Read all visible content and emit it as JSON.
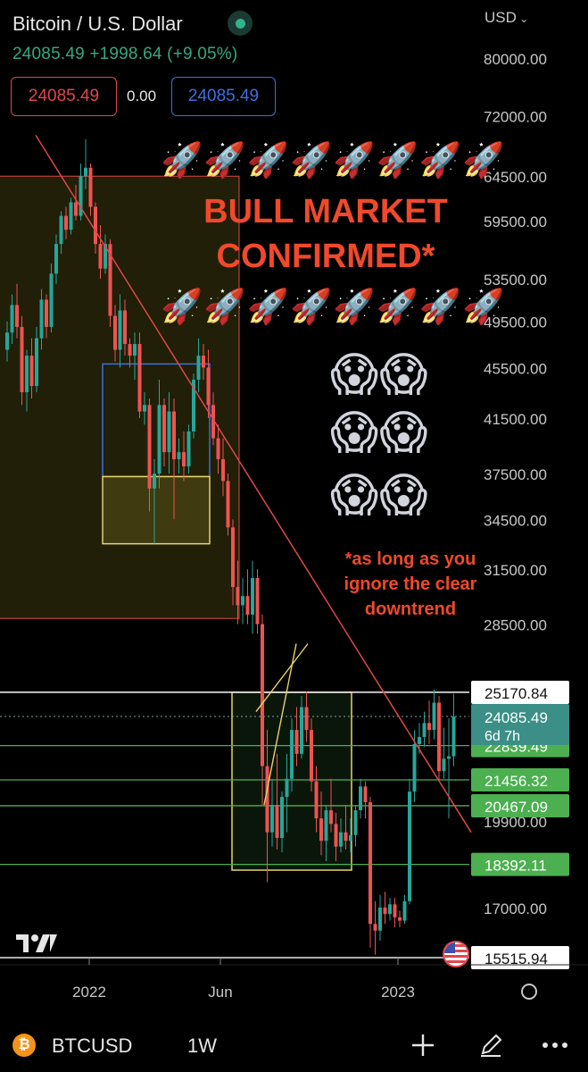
{
  "header": {
    "title": "Bitcoin / U.S. Dollar",
    "price_line": "24085.49  +1998.64 (+9.05%)",
    "sell_price": "24085.49",
    "spread": "0.00",
    "buy_price": "24085.49",
    "currency": "USD"
  },
  "annotations": {
    "rockets": "🚀🚀🚀🚀🚀🚀🚀🚀",
    "headline_1": "BULL MARKET",
    "headline_2": "CONFIRMED*",
    "scream": "😱😱",
    "footnote_1": "*as long as you",
    "footnote_2": "ignore the clear",
    "footnote_3": "downtrend"
  },
  "toolbar": {
    "symbol": "BTCUSD",
    "interval": "1W",
    "add_icon": "plus-icon",
    "draw_icon": "pencil-icon",
    "more_icon": "more-icon"
  },
  "colors": {
    "up": "#26a69a",
    "down": "#ef5350",
    "accent_red": "#f0492b",
    "level_green": "#4caf50"
  },
  "chart_data": {
    "type": "candlestick",
    "title": "",
    "xlabel": "",
    "ylabel": "",
    "x_ticks": [
      "2022",
      "Jun",
      "2023"
    ],
    "y_ticks": [
      80000,
      72000,
      64500,
      59500,
      53500,
      49500,
      45500,
      41500,
      37500,
      34500,
      31500,
      28500,
      19900,
      17000
    ],
    "y_tick_labels": [
      "80000.00",
      "72000.00",
      "64500.00",
      "59500.00",
      "53500.00",
      "49500.00",
      "45500.00",
      "41500.00",
      "37500.00",
      "34500.00",
      "31500.00",
      "28500.00",
      "19900.00",
      "17000.00"
    ],
    "y_scale": "log",
    "grid": false,
    "current_price": {
      "value": 24085.49,
      "label": "24085.49",
      "countdown": "6d 7h"
    },
    "price_levels": [
      {
        "value": 25170.84,
        "label": "25170.84",
        "style": "white"
      },
      {
        "value": 22839.49,
        "label": "22839.49",
        "style": "green"
      },
      {
        "value": 21456.32,
        "label": "21456.32",
        "style": "green"
      },
      {
        "value": 20467.09,
        "label": "20467.09",
        "style": "green"
      },
      {
        "value": 18392.11,
        "label": "18392.11",
        "style": "green"
      },
      {
        "value": 15515.94,
        "label": "15515.94",
        "style": "white"
      }
    ],
    "candles": [
      [
        47000,
        49500,
        46000,
        48500
      ],
      [
        48500,
        52000,
        47500,
        51000
      ],
      [
        51000,
        53000,
        48000,
        49000
      ],
      [
        49000,
        50000,
        42500,
        43500
      ],
      [
        43500,
        47000,
        42000,
        46500
      ],
      [
        46500,
        48000,
        43000,
        44000
      ],
      [
        44000,
        49000,
        43500,
        48000
      ],
      [
        48000,
        52500,
        47000,
        51500
      ],
      [
        51500,
        52000,
        48000,
        49000
      ],
      [
        49000,
        55000,
        48500,
        54000
      ],
      [
        54000,
        58000,
        53000,
        57000
      ],
      [
        57000,
        60500,
        56000,
        60000
      ],
      [
        60000,
        61000,
        57500,
        58500
      ],
      [
        58500,
        62000,
        58000,
        61500
      ],
      [
        61500,
        63500,
        59500,
        60000
      ],
      [
        60000,
        66000,
        59500,
        64500
      ],
      [
        64500,
        69000,
        63000,
        65500
      ],
      [
        65500,
        66000,
        60000,
        61000
      ],
      [
        61000,
        61500,
        56000,
        57000
      ],
      [
        57000,
        59000,
        53500,
        54500
      ],
      [
        54500,
        58000,
        54000,
        57000
      ],
      [
        57000,
        57500,
        49000,
        50000
      ],
      [
        50000,
        51000,
        46000,
        47000
      ],
      [
        47000,
        52000,
        45500,
        50500
      ],
      [
        50500,
        51500,
        46500,
        47500
      ],
      [
        47500,
        48000,
        45500,
        46500
      ],
      [
        46500,
        48500,
        44500,
        47500
      ],
      [
        47500,
        48500,
        41500,
        42000
      ],
      [
        42000,
        43500,
        41000,
        42500
      ],
      [
        42500,
        43000,
        35000,
        36500
      ],
      [
        36500,
        38500,
        33000,
        37500
      ],
      [
        37500,
        44500,
        36500,
        42500
      ],
      [
        42500,
        43000,
        38000,
        39000
      ],
      [
        39000,
        43500,
        37500,
        42000
      ],
      [
        42000,
        43000,
        34500,
        38500
      ],
      [
        38500,
        40000,
        37500,
        39000
      ],
      [
        39000,
        40500,
        37000,
        38000
      ],
      [
        38000,
        41000,
        37500,
        40500
      ],
      [
        40500,
        45000,
        40000,
        44500
      ],
      [
        44500,
        48000,
        43500,
        46500
      ],
      [
        46500,
        47500,
        44500,
        45500
      ],
      [
        45500,
        47000,
        41500,
        42500
      ],
      [
        42500,
        43500,
        39500,
        40000
      ],
      [
        40000,
        41000,
        37500,
        38500
      ],
      [
        38500,
        40000,
        36000,
        37000
      ],
      [
        37000,
        37500,
        33500,
        34000
      ],
      [
        34000,
        34500,
        29500,
        30500
      ],
      [
        30500,
        32000,
        28500,
        29500
      ],
      [
        29500,
        31000,
        28500,
        30000
      ],
      [
        30000,
        31500,
        28500,
        29000
      ],
      [
        29000,
        32000,
        28000,
        31000
      ],
      [
        31000,
        31500,
        28000,
        28500
      ],
      [
        28500,
        29000,
        20500,
        22000
      ],
      [
        22000,
        23500,
        17800,
        19500
      ],
      [
        19500,
        21500,
        19000,
        20500
      ],
      [
        20500,
        22500,
        18900,
        19300
      ],
      [
        19300,
        21000,
        18800,
        20800
      ],
      [
        20800,
        22500,
        19500,
        21500
      ],
      [
        21500,
        24000,
        21000,
        23500
      ],
      [
        23500,
        24500,
        22000,
        22500
      ],
      [
        22500,
        25000,
        22300,
        24500
      ],
      [
        24500,
        25200,
        23000,
        23500
      ],
      [
        23500,
        24000,
        21000,
        21400
      ],
      [
        21400,
        22000,
        19500,
        20000
      ],
      [
        20000,
        21000,
        18700,
        19200
      ],
      [
        19200,
        20500,
        18500,
        20300
      ],
      [
        20300,
        21500,
        19500,
        19800
      ],
      [
        19800,
        20200,
        18500,
        19000
      ],
      [
        19000,
        20000,
        18800,
        19500
      ],
      [
        19500,
        20500,
        18900,
        19200
      ],
      [
        19200,
        20000,
        18800,
        19400
      ],
      [
        19400,
        20500,
        19000,
        20300
      ],
      [
        20300,
        21500,
        20000,
        21200
      ],
      [
        21200,
        21400,
        20000,
        20600
      ],
      [
        20600,
        20800,
        15800,
        16500
      ],
      [
        16500,
        17200,
        15600,
        16300
      ],
      [
        16300,
        17400,
        16000,
        17000
      ],
      [
        17000,
        17500,
        16500,
        16800
      ],
      [
        16800,
        17300,
        16600,
        17100
      ],
      [
        17100,
        17300,
        16400,
        16700
      ],
      [
        16700,
        16900,
        16400,
        16600
      ],
      [
        16600,
        17400,
        16500,
        17200
      ],
      [
        17200,
        21500,
        17100,
        21000
      ],
      [
        21000,
        23500,
        20600,
        22900
      ],
      [
        22900,
        23800,
        22500,
        23200
      ],
      [
        23200,
        24300,
        22800,
        23800
      ],
      [
        23800,
        24800,
        22900,
        23500
      ],
      [
        23500,
        25300,
        23100,
        24700
      ],
      [
        24700,
        25000,
        21400,
        21800
      ],
      [
        21800,
        23600,
        21500,
        22300
      ],
      [
        22300,
        24000,
        20000,
        22400
      ],
      [
        22400,
        25100,
        22000,
        24085
      ]
    ]
  }
}
